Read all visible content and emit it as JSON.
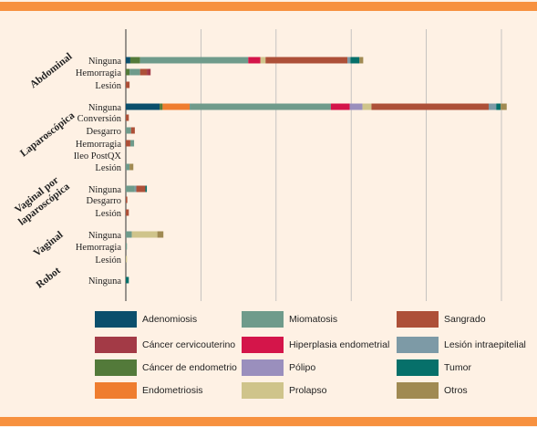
{
  "chart_data": {
    "type": "bar",
    "orientation": "horizontal",
    "stacked": true,
    "title": "",
    "xlabel": "",
    "ylabel": "",
    "xlim": [
      0,
      50
    ],
    "x_gridlines": [
      0,
      10,
      20,
      30,
      40,
      50
    ],
    "grid": true,
    "legend_position": "bottom",
    "series_order": [
      "Adenomiosis",
      "Cáncer cervicouterino",
      "Cáncer de endometrio",
      "Endometriosis",
      "Miomatosis",
      "Hiperplasia endometrial",
      "Pólipo",
      "Prolapso",
      "Sangrado",
      "Lesión intraepitelial",
      "Tumor",
      "Otros"
    ],
    "colors": {
      "Adenomiosis": "#0b4f6c",
      "Cáncer cervicouterino": "#a33a46",
      "Cáncer de endometrio": "#537a3a",
      "Endometriosis": "#ef7d2f",
      "Miomatosis": "#6f9b8b",
      "Hiperplasia endometrial": "#d4154a",
      "Pólipo": "#9a8fbd",
      "Prolapso": "#cfc48b",
      "Sangrado": "#ad5038",
      "Lesión intraepitelial": "#7d9aa6",
      "Tumor": "#06706a",
      "Otros": "#a08a52"
    },
    "groups": [
      {
        "name": "Abdominal",
        "rows": [
          {
            "label": "Ninguna",
            "segments": [
              {
                "series": "Adenomiosis",
                "value": 0.6
              },
              {
                "series": "Cáncer de endometrio",
                "value": 1.3
              },
              {
                "series": "Miomatosis",
                "value": 14.4
              },
              {
                "series": "Hiperplasia endometrial",
                "value": 1.6
              },
              {
                "series": "Prolapso",
                "value": 0.7
              },
              {
                "series": "Sangrado",
                "value": 10.9
              },
              {
                "series": "Lesión intraepitelial",
                "value": 0.4
              },
              {
                "series": "Tumor",
                "value": 1.2
              },
              {
                "series": "Otros",
                "value": 0.5
              }
            ]
          },
          {
            "label": "Hemorragia",
            "segments": [
              {
                "series": "Cáncer de endometrio",
                "value": 0.5
              },
              {
                "series": "Miomatosis",
                "value": 1.4
              },
              {
                "series": "Sangrado",
                "value": 0.9
              },
              {
                "series": "Cáncer cervicouterino",
                "value": 0.5
              }
            ]
          },
          {
            "label": "Lesión",
            "segments": [
              {
                "series": "Sangrado",
                "value": 0.5
              }
            ]
          }
        ]
      },
      {
        "name": "Laparoscópica",
        "rows": [
          {
            "label": "Ninguna",
            "segments": [
              {
                "series": "Adenomiosis",
                "value": 4.5
              },
              {
                "series": "Cáncer de endometrio",
                "value": 0.4
              },
              {
                "series": "Endometriosis",
                "value": 3.6
              },
              {
                "series": "Miomatosis",
                "value": 18.8
              },
              {
                "series": "Hiperplasia endometrial",
                "value": 2.5
              },
              {
                "series": "Pólipo",
                "value": 1.7
              },
              {
                "series": "Prolapso",
                "value": 1.2
              },
              {
                "series": "Sangrado",
                "value": 15.6
              },
              {
                "series": "Lesión intraepitelial",
                "value": 1.0
              },
              {
                "series": "Tumor",
                "value": 0.6
              },
              {
                "series": "Otros",
                "value": 0.8
              }
            ]
          },
          {
            "label": "Conversión",
            "segments": [
              {
                "series": "Sangrado",
                "value": 0.4
              }
            ]
          },
          {
            "label": "Desgarro",
            "segments": [
              {
                "series": "Miomatosis",
                "value": 0.7
              },
              {
                "series": "Sangrado",
                "value": 0.5
              }
            ]
          },
          {
            "label": "Hemorragia",
            "segments": [
              {
                "series": "Sangrado",
                "value": 0.6
              },
              {
                "series": "Miomatosis",
                "value": 0.5
              }
            ]
          },
          {
            "label": "Ileo PostQX",
            "segments": []
          },
          {
            "label": "Lesión",
            "segments": [
              {
                "series": "Miomatosis",
                "value": 0.5
              },
              {
                "series": "Otros",
                "value": 0.5
              }
            ]
          }
        ]
      },
      {
        "name": "Vaginal por laparoscópica",
        "rows": [
          {
            "label": "Ninguna",
            "segments": [
              {
                "series": "Miomatosis",
                "value": 1.2
              },
              {
                "series": "Lesión intraepitelial",
                "value": 0.2
              },
              {
                "series": "Sangrado",
                "value": 1.2
              },
              {
                "series": "Tumor",
                "value": 0.2
              }
            ]
          },
          {
            "label": "Desgarro",
            "segments": [
              {
                "series": "Sangrado",
                "value": 0.2
              }
            ]
          },
          {
            "label": "Lesión",
            "segments": [
              {
                "series": "Sangrado",
                "value": 0.4
              }
            ]
          }
        ]
      },
      {
        "name": "Vaginal",
        "rows": [
          {
            "label": "Ninguna",
            "segments": [
              {
                "series": "Miomatosis",
                "value": 0.8
              },
              {
                "series": "Prolapso",
                "value": 3.4
              },
              {
                "series": "Otros",
                "value": 0.8
              }
            ]
          },
          {
            "label": "Hemorragia",
            "segments": [
              {
                "series": "Miomatosis",
                "value": 0.15
              }
            ]
          },
          {
            "label": "Lesión",
            "segments": [
              {
                "series": "Prolapso",
                "value": 0.15
              }
            ]
          }
        ]
      },
      {
        "name": "Robot",
        "rows": [
          {
            "label": "Ninguna",
            "segments": [
              {
                "series": "Tumor",
                "value": 0.4
              }
            ]
          }
        ]
      }
    ],
    "legend": [
      {
        "series": "Adenomiosis",
        "label": "Adenomiosis"
      },
      {
        "series": "Miomatosis",
        "label": "Miomatosis"
      },
      {
        "series": "Sangrado",
        "label": "Sangrado"
      },
      {
        "series": "Cáncer cervicouterino",
        "label": "Cáncer cervicouterino"
      },
      {
        "series": "Hiperplasia endometrial",
        "label": "Hiperplasia endometrial"
      },
      {
        "series": "Lesión intraepitelial",
        "label": "Lesión intraepitelial"
      },
      {
        "series": "Cáncer de endometrio",
        "label": "Cáncer de endometrio"
      },
      {
        "series": "Pólipo",
        "label": "Pólipo"
      },
      {
        "series": "Tumor",
        "label": "Tumor"
      },
      {
        "series": "Endometriosis",
        "label": "Endometriosis"
      },
      {
        "series": "Prolapso",
        "label": "Prolapso"
      },
      {
        "series": "Otros",
        "label": "Otros"
      }
    ]
  }
}
